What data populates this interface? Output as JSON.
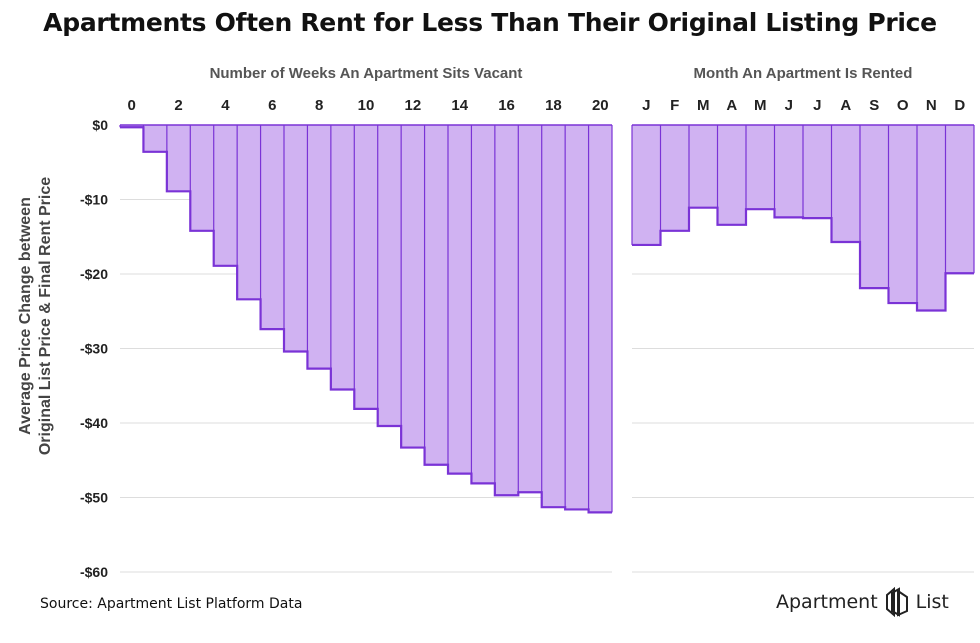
{
  "title": "Apartments Often Rent for Less Than Their Original Listing Price",
  "colors": {
    "bar_fill": "#d0b2f2",
    "bar_stroke": "#7a33d6",
    "grid": "#dddddd",
    "text": "#444444"
  },
  "ylabel_line1": "Average Price Change between",
  "ylabel_line2": "Original List Price & Final Rent Price",
  "source": "Source: Apartment List Platform Data",
  "logo": {
    "word1": "Apartment",
    "word2": "List",
    "icon": "apartment-list-logo-icon"
  },
  "chart_data": [
    {
      "type": "bar",
      "title": "Number of Weeks An Apartment Sits Vacant",
      "categories": [
        "0",
        "1",
        "2",
        "3",
        "4",
        "5",
        "6",
        "7",
        "8",
        "9",
        "10",
        "11",
        "12",
        "13",
        "14",
        "15",
        "16",
        "17",
        "18",
        "19",
        "20"
      ],
      "tick_labels": [
        "0",
        "2",
        "4",
        "6",
        "8",
        "10",
        "12",
        "14",
        "16",
        "18",
        "20"
      ],
      "values": [
        -0.3,
        -3.6,
        -8.9,
        -14.2,
        -18.9,
        -23.4,
        -27.4,
        -30.4,
        -32.7,
        -35.5,
        -38.1,
        -40.4,
        -43.3,
        -45.6,
        -46.8,
        -48.1,
        -49.7,
        -49.3,
        -51.3,
        -51.6,
        -52.0
      ],
      "ylim": [
        -60,
        0
      ],
      "yticks": [
        "$0",
        "-$10",
        "-$20",
        "-$30",
        "-$40",
        "-$50",
        "-$60"
      ],
      "grid": true
    },
    {
      "type": "bar",
      "title": "Month An Apartment Is Rented",
      "categories": [
        "J",
        "F",
        "M",
        "A",
        "M",
        "J",
        "J",
        "A",
        "S",
        "O",
        "N",
        "D"
      ],
      "values": [
        -16.1,
        -14.2,
        -11.1,
        -13.4,
        -11.3,
        -12.4,
        -12.5,
        -15.7,
        -21.9,
        -23.9,
        -24.9,
        -19.9
      ],
      "ylim": [
        -60,
        0
      ],
      "grid": true
    }
  ]
}
